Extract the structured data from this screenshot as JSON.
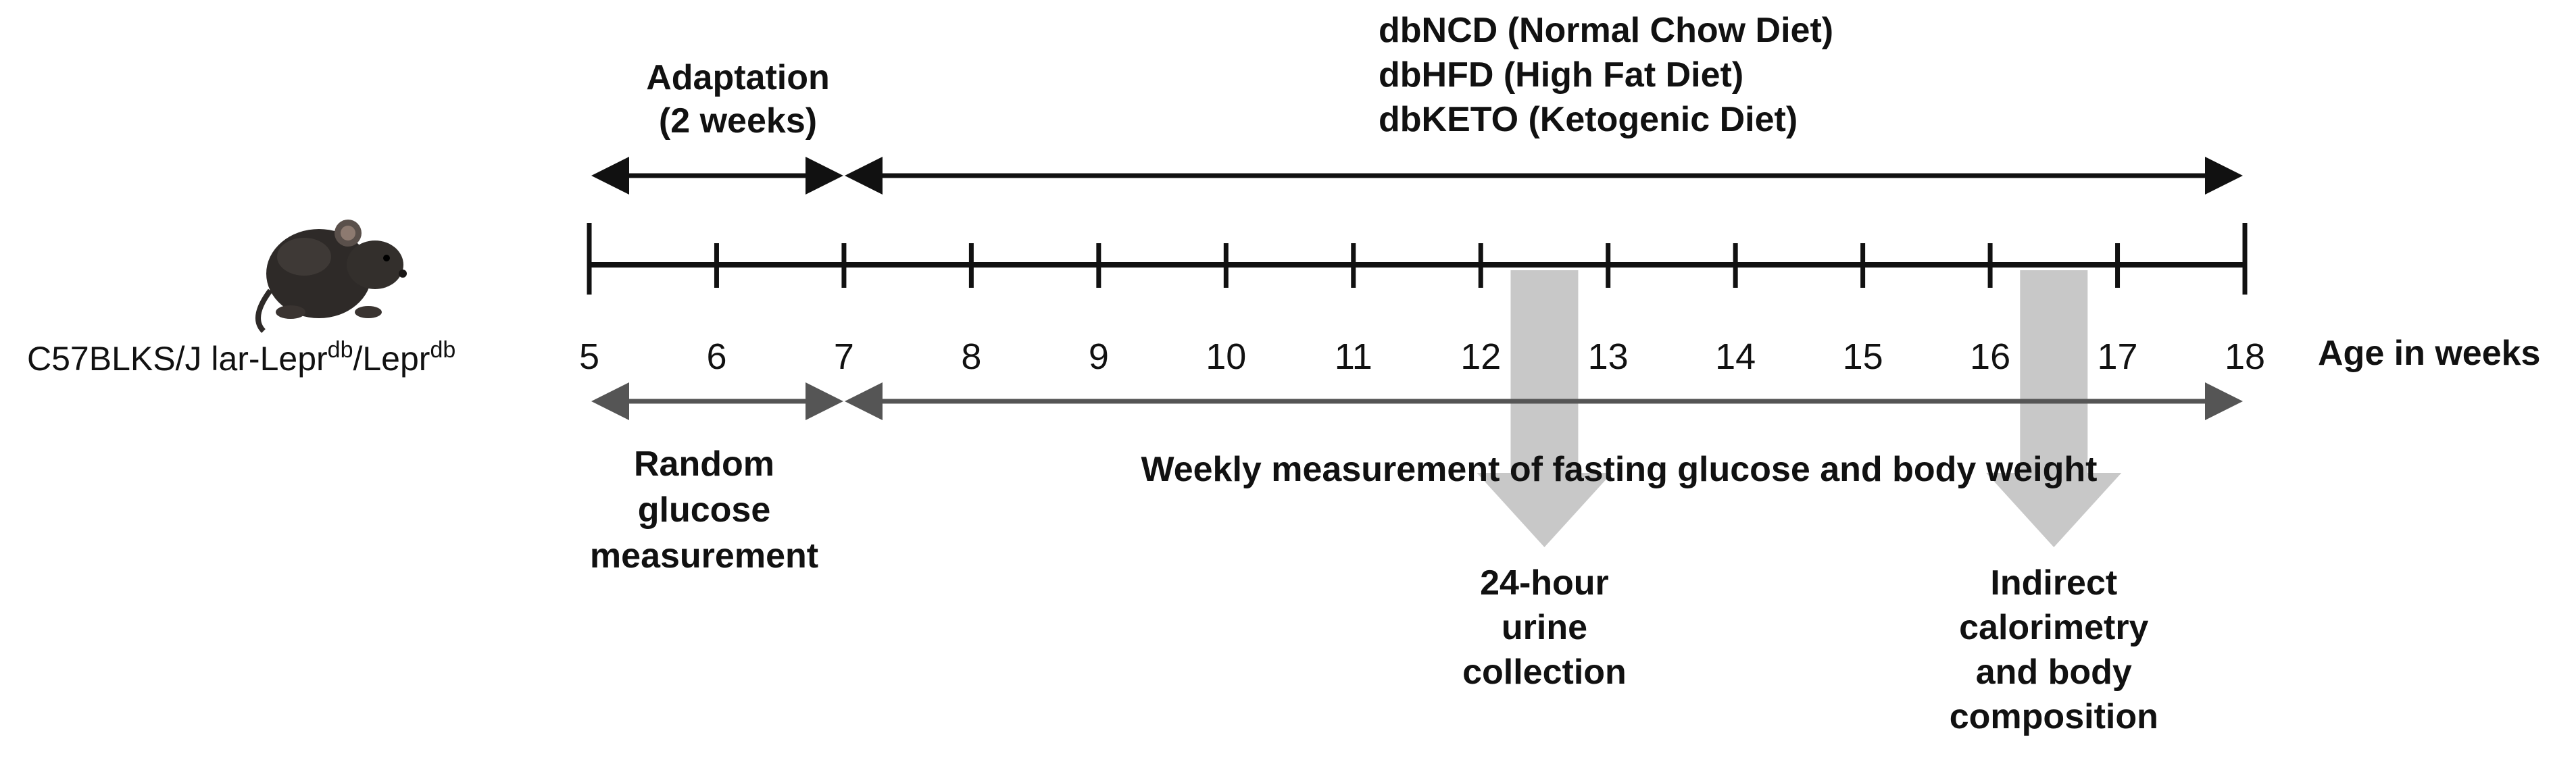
{
  "colors": {
    "timeline": "#111111",
    "measure_arrow": "#555555",
    "block_arrow": "#c8c8c8",
    "text": "#111111",
    "background": "#ffffff"
  },
  "mouse": {
    "icon": "mouse-icon"
  },
  "strain": {
    "base": "C57BLKS/J lar-Lepr",
    "sup1": "db",
    "mid": "/Lepr",
    "sup2": "db"
  },
  "adaptation": {
    "line1": "Adaptation",
    "line2": "(2 weeks)"
  },
  "diets": [
    "dbNCD (Normal Chow Diet)",
    "dbHFD (High Fat Diet)",
    "dbKETO (Ketogenic Diet)"
  ],
  "timeline": {
    "ticks": [
      5,
      6,
      7,
      8,
      9,
      10,
      11,
      12,
      13,
      14,
      15,
      16,
      17,
      18
    ],
    "tick_labels": [
      "5",
      "6",
      "7",
      "8",
      "9",
      "10",
      "11",
      "12",
      "13",
      "14",
      "15",
      "16",
      "17",
      "18"
    ],
    "axis_label": "Age in weeks"
  },
  "random_glucose": {
    "lines": [
      "Random",
      "glucose",
      "measurement"
    ]
  },
  "weekly": {
    "label": "Weekly measurement of fasting glucose and body weight"
  },
  "events": [
    {
      "week": 12.5,
      "lines": [
        "24-hour",
        "urine",
        "collection"
      ]
    },
    {
      "week": 16.5,
      "lines": [
        "Indirect",
        "calorimetry",
        "and body",
        "composition"
      ]
    }
  ]
}
